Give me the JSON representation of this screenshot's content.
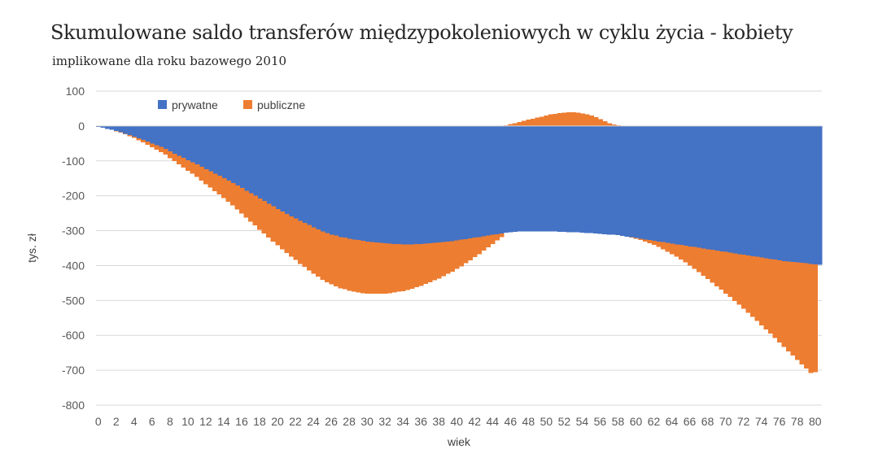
{
  "title": "Skumulowane saldo transferów międzypokoleniowych w cyklu życia - kobiety",
  "subtitle": "implikowane dla roku bazowego 2010",
  "chart_data": {
    "type": "area",
    "stacked": true,
    "step": true,
    "title": "Skumulowane saldo transferów międzypokoleniowych w cyklu życia - kobiety",
    "subtitle": "implikowane dla roku bazowego 2010",
    "xlabel": "wiek",
    "ylabel": "tys. zł",
    "ylim": [
      -800,
      100
    ],
    "yticks": [
      100,
      0,
      -100,
      -200,
      -300,
      -400,
      -500,
      -600,
      -700,
      -800
    ],
    "xticks": [
      0,
      2,
      4,
      6,
      8,
      10,
      12,
      14,
      16,
      18,
      20,
      22,
      24,
      26,
      28,
      30,
      32,
      34,
      36,
      38,
      40,
      42,
      44,
      46,
      48,
      50,
      52,
      54,
      56,
      58,
      60,
      62,
      64,
      66,
      68,
      70,
      72,
      74,
      76,
      78,
      80
    ],
    "grid": "horizontal",
    "legend_position": "top-left",
    "x_start": 0,
    "x_step": 0.5,
    "series": [
      {
        "name": "prywatne",
        "color": "#4472C4",
        "values": [
          -2,
          -5,
          -8,
          -11,
          -14,
          -18,
          -22,
          -26,
          -30,
          -35,
          -40,
          -45,
          -50,
          -55,
          -60,
          -65,
          -72,
          -79,
          -85,
          -91,
          -98,
          -104,
          -110,
          -117,
          -124,
          -130,
          -137,
          -143,
          -150,
          -156,
          -163,
          -170,
          -178,
          -186,
          -193,
          -200,
          -208,
          -215,
          -223,
          -230,
          -238,
          -245,
          -252,
          -259,
          -265,
          -272,
          -278,
          -284,
          -290,
          -296,
          -302,
          -307,
          -311,
          -314,
          -318,
          -320,
          -323,
          -325,
          -327,
          -329,
          -331,
          -332,
          -334,
          -335,
          -336,
          -337,
          -338,
          -338,
          -339,
          -339,
          -339,
          -338,
          -338,
          -337,
          -336,
          -335,
          -334,
          -333,
          -331,
          -330,
          -328,
          -326,
          -324,
          -322,
          -320,
          -318,
          -316,
          -314,
          -312,
          -310,
          -308,
          -306,
          -304,
          -303,
          -302,
          -302,
          -302,
          -302,
          -302,
          -302,
          -302,
          -302,
          -302,
          -303,
          -303,
          -304,
          -304,
          -305,
          -306,
          -307,
          -307,
          -308,
          -309,
          -310,
          -311,
          -312,
          -313,
          -315,
          -317,
          -319,
          -321,
          -323,
          -325,
          -327,
          -329,
          -331,
          -333,
          -335,
          -337,
          -339,
          -341,
          -343,
          -345,
          -347,
          -349,
          -351,
          -353,
          -355,
          -357,
          -359,
          -361,
          -363,
          -365,
          -367,
          -369,
          -371,
          -373,
          -375,
          -377,
          -379,
          -381,
          -383,
          -385,
          -387,
          -389,
          -390,
          -391,
          -392,
          -393,
          -395,
          -397,
          -398
        ]
      },
      {
        "name": "publiczne",
        "color": "#ED7D31",
        "values": [
          0,
          0,
          0,
          0,
          -1,
          -1,
          -2,
          -3,
          -4,
          -6,
          -7,
          -9,
          -11,
          -13,
          -15,
          -17,
          -20,
          -22,
          -25,
          -28,
          -30,
          -33,
          -36,
          -39,
          -43,
          -46,
          -50,
          -53,
          -57,
          -61,
          -65,
          -69,
          -73,
          -77,
          -81,
          -85,
          -89,
          -93,
          -97,
          -101,
          -104,
          -108,
          -112,
          -115,
          -119,
          -123,
          -126,
          -130,
          -133,
          -136,
          -139,
          -141,
          -143,
          -145,
          -147,
          -148,
          -149,
          -150,
          -150,
          -150,
          -149,
          -148,
          -147,
          -146,
          -144,
          -142,
          -139,
          -137,
          -134,
          -131,
          -127,
          -124,
          -120,
          -116,
          -112,
          -107,
          -103,
          -98,
          -93,
          -88,
          -82,
          -76,
          -69,
          -63,
          -56,
          -49,
          -41,
          -34,
          -26,
          -18,
          -10,
          2,
          5,
          8,
          11,
          15,
          18,
          21,
          24,
          27,
          30,
          33,
          35,
          37,
          38,
          39,
          39,
          38,
          36,
          33,
          30,
          25,
          20,
          14,
          8,
          4,
          2,
          0,
          0,
          -1,
          -2,
          -4,
          -6,
          -9,
          -12,
          -16,
          -20,
          -25,
          -30,
          -36,
          -42,
          -48,
          -55,
          -62,
          -70,
          -78,
          -86,
          -94,
          -102,
          -110,
          -119,
          -127,
          -136,
          -145,
          -155,
          -164,
          -174,
          -184,
          -194,
          -204,
          -214,
          -225,
          -235,
          -246,
          -257,
          -268,
          -280,
          -291,
          -302,
          -313,
          -308
        ]
      }
    ]
  }
}
